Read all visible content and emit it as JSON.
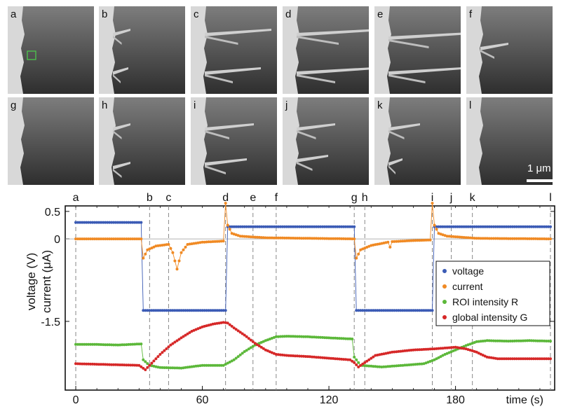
{
  "panels": [
    "a",
    "b",
    "c",
    "d",
    "e",
    "f",
    "g",
    "h",
    "i",
    "j",
    "k",
    "l"
  ],
  "scale_bar": "1 μm",
  "chart_data": {
    "type": "line",
    "xlabel": "time (s)",
    "ylabel_lines": [
      "voltage (V)",
      "current (μA)"
    ],
    "xlim": [
      -5,
      227
    ],
    "ylim": [
      -2.75,
      0.6
    ],
    "x_ticks": [
      0,
      60,
      120,
      180
    ],
    "y_ticks": [
      {
        "v": 0.5,
        "label": "0.5"
      },
      {
        "v": 0,
        "label": "0"
      },
      {
        "v": -1.5,
        "label": "-1.5"
      }
    ],
    "events": [
      {
        "label": "a",
        "t": 0
      },
      {
        "label": "b",
        "t": 35
      },
      {
        "label": "c",
        "t": 44
      },
      {
        "label": "d",
        "t": 71
      },
      {
        "label": "e",
        "t": 84
      },
      {
        "label": "f",
        "t": 95
      },
      {
        "label": "g",
        "t": 132
      },
      {
        "label": "h",
        "t": 137
      },
      {
        "label": "i",
        "t": 169
      },
      {
        "label": "j",
        "t": 178
      },
      {
        "label": "k",
        "t": 188
      },
      {
        "label": "l",
        "t": 225
      }
    ],
    "legend": {
      "position": "lower-right"
    },
    "series": [
      {
        "name": "voltage",
        "color": "#3b5bb5",
        "points": [
          [
            0,
            0.3
          ],
          [
            31,
            0.3
          ],
          [
            32,
            -1.3
          ],
          [
            71,
            -1.3
          ],
          [
            72,
            0.22
          ],
          [
            132,
            0.22
          ],
          [
            133,
            -1.3
          ],
          [
            169,
            -1.3
          ],
          [
            170,
            0.22
          ],
          [
            225,
            0.22
          ]
        ]
      },
      {
        "name": "current",
        "color": "#f08a24",
        "points": [
          [
            0,
            0
          ],
          [
            31,
            0
          ],
          [
            32,
            -0.35
          ],
          [
            34,
            -0.2
          ],
          [
            38,
            -0.13
          ],
          [
            44,
            -0.1
          ],
          [
            46,
            -0.25
          ],
          [
            48,
            -0.55
          ],
          [
            50,
            -0.25
          ],
          [
            53,
            -0.1
          ],
          [
            60,
            -0.06
          ],
          [
            70,
            -0.04
          ],
          [
            71,
            0.65
          ],
          [
            72,
            0.25
          ],
          [
            74,
            0.1
          ],
          [
            78,
            0.05
          ],
          [
            90,
            0.02
          ],
          [
            132,
            0
          ],
          [
            133,
            -0.35
          ],
          [
            135,
            -0.2
          ],
          [
            140,
            -0.12
          ],
          [
            148,
            -0.06
          ],
          [
            149,
            -0.15
          ],
          [
            150,
            -0.05
          ],
          [
            160,
            -0.03
          ],
          [
            168,
            -0.02
          ],
          [
            169,
            0.65
          ],
          [
            170,
            0.25
          ],
          [
            172,
            0.1
          ],
          [
            176,
            0.05
          ],
          [
            190,
            0.01
          ],
          [
            225,
            0
          ]
        ]
      },
      {
        "name": "ROI intensity R",
        "color": "#5cb83a",
        "points": [
          [
            0,
            -1.92
          ],
          [
            10,
            -1.92
          ],
          [
            20,
            -1.93
          ],
          [
            31,
            -1.91
          ],
          [
            32,
            -2.2
          ],
          [
            35,
            -2.3
          ],
          [
            40,
            -2.34
          ],
          [
            50,
            -2.35
          ],
          [
            60,
            -2.3
          ],
          [
            70,
            -2.3
          ],
          [
            75,
            -2.2
          ],
          [
            80,
            -2.05
          ],
          [
            85,
            -1.93
          ],
          [
            90,
            -1.85
          ],
          [
            95,
            -1.78
          ],
          [
            100,
            -1.77
          ],
          [
            110,
            -1.78
          ],
          [
            120,
            -1.8
          ],
          [
            131,
            -1.82
          ],
          [
            132,
            -2.15
          ],
          [
            135,
            -2.3
          ],
          [
            145,
            -2.33
          ],
          [
            155,
            -2.3
          ],
          [
            165,
            -2.27
          ],
          [
            170,
            -2.2
          ],
          [
            175,
            -2.1
          ],
          [
            180,
            -2.02
          ],
          [
            185,
            -1.94
          ],
          [
            190,
            -1.87
          ],
          [
            195,
            -1.85
          ],
          [
            205,
            -1.86
          ],
          [
            215,
            -1.85
          ],
          [
            225,
            -1.86
          ]
        ]
      },
      {
        "name": "global intensity G",
        "color": "#d62828",
        "points": [
          [
            0,
            -2.27
          ],
          [
            10,
            -2.28
          ],
          [
            20,
            -2.29
          ],
          [
            30,
            -2.3
          ],
          [
            33,
            -2.38
          ],
          [
            35,
            -2.3
          ],
          [
            40,
            -2.1
          ],
          [
            45,
            -1.93
          ],
          [
            50,
            -1.8
          ],
          [
            55,
            -1.68
          ],
          [
            60,
            -1.6
          ],
          [
            65,
            -1.55
          ],
          [
            70,
            -1.52
          ],
          [
            72,
            -1.53
          ],
          [
            75,
            -1.62
          ],
          [
            80,
            -1.75
          ],
          [
            85,
            -1.9
          ],
          [
            90,
            -2.02
          ],
          [
            95,
            -2.1
          ],
          [
            100,
            -2.12
          ],
          [
            110,
            -2.14
          ],
          [
            120,
            -2.17
          ],
          [
            130,
            -2.2
          ],
          [
            132,
            -2.25
          ],
          [
            134,
            -2.33
          ],
          [
            137,
            -2.25
          ],
          [
            142,
            -2.12
          ],
          [
            150,
            -2.06
          ],
          [
            160,
            -2.02
          ],
          [
            170,
            -2.0
          ],
          [
            180,
            -1.97
          ],
          [
            185,
            -2.0
          ],
          [
            190,
            -2.06
          ],
          [
            195,
            -2.15
          ],
          [
            200,
            -2.18
          ],
          [
            210,
            -2.18
          ],
          [
            225,
            -2.18
          ]
        ]
      }
    ]
  }
}
